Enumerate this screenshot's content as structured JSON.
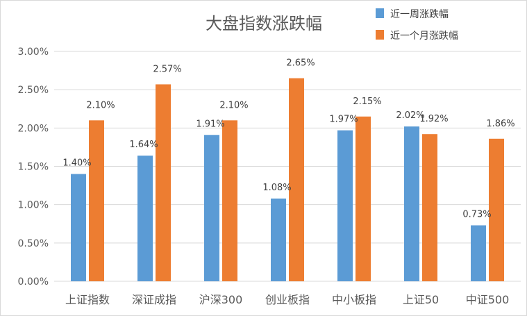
{
  "chart_data": {
    "type": "bar",
    "title": "大盘指数涨跌幅",
    "xlabel": "",
    "ylabel": "",
    "ylim": [
      0,
      3.0
    ],
    "yticks": [
      "0.00%",
      "0.50%",
      "1.00%",
      "1.50%",
      "2.00%",
      "2.50%",
      "3.00%"
    ],
    "grid": true,
    "legend_position": "top-right",
    "categories": [
      "上证指数",
      "深证成指",
      "沪深300",
      "创业板指",
      "中小板指",
      "上证50",
      "中证500"
    ],
    "series": [
      {
        "name": "近一周涨跌幅",
        "color": "#5B9BD5",
        "values": [
          1.4,
          1.64,
          1.91,
          1.08,
          1.97,
          2.02,
          0.73
        ],
        "labels": [
          "1.40%",
          "1.64%",
          "1.91%",
          "1.08%",
          "1.97%",
          "2.02%",
          "0.73%"
        ]
      },
      {
        "name": "近一个月涨跌幅",
        "color": "#ED7D31",
        "values": [
          2.1,
          2.57,
          2.1,
          2.65,
          2.15,
          1.92,
          1.86
        ],
        "labels": [
          "2.10%",
          "2.57%",
          "2.10%",
          "2.65%",
          "2.15%",
          "1.92%",
          "1.86%"
        ]
      }
    ]
  }
}
